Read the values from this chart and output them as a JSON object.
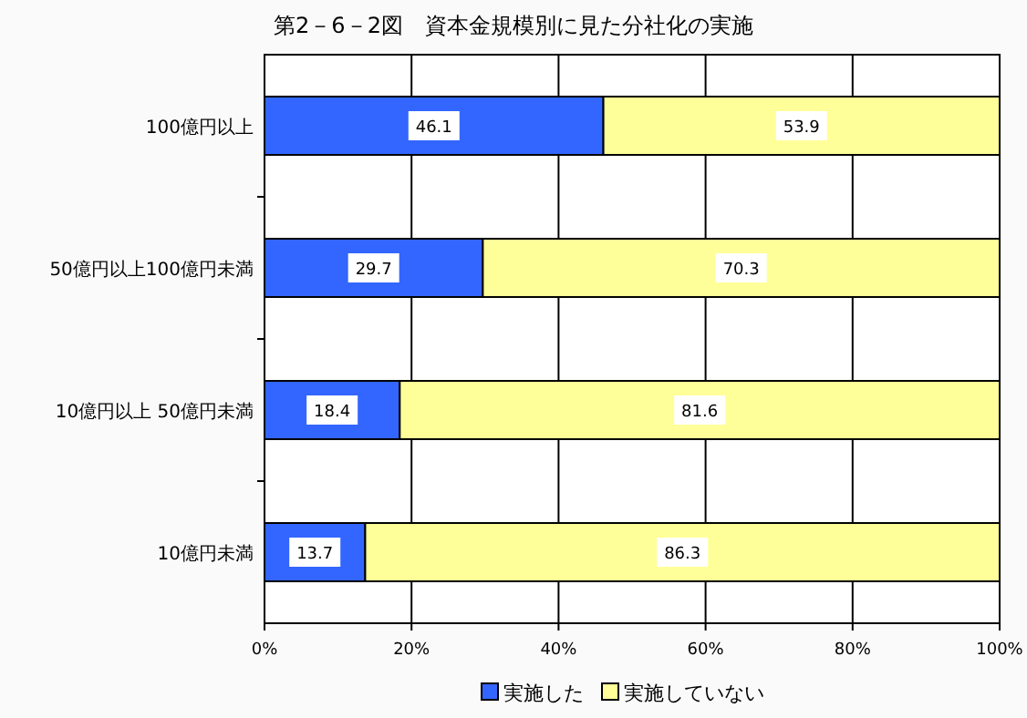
{
  "chart_data": {
    "type": "bar",
    "orientation": "horizontal",
    "stacked": true,
    "title": "第2－6－2図　資本金規模別に見た分社化の実施",
    "categories": [
      "100億円以上",
      "50億円以上100億円未満",
      "10億円以上 50億円未満",
      "10億円未満"
    ],
    "series": [
      {
        "name": "実施した",
        "color": "#3366ff",
        "values": [
          46.1,
          29.7,
          18.4,
          13.7
        ]
      },
      {
        "name": "実施していない",
        "color": "#ffff99",
        "values": [
          53.9,
          70.3,
          81.6,
          86.3
        ]
      }
    ],
    "xlim": [
      0,
      100
    ],
    "xticks": [
      {
        "value": 0,
        "label": "0%"
      },
      {
        "value": 20,
        "label": "20%"
      },
      {
        "value": 40,
        "label": "40%"
      },
      {
        "value": 60,
        "label": "60%"
      },
      {
        "value": 80,
        "label": "80%"
      },
      {
        "value": 100,
        "label": "100%"
      }
    ],
    "grid": "x",
    "legend": "bottom",
    "data_labels": true
  }
}
